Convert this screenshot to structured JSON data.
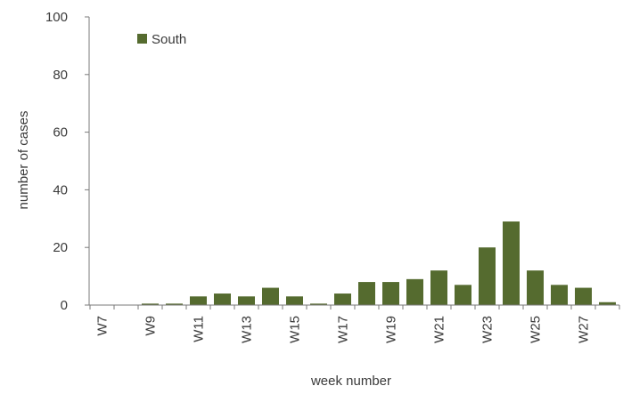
{
  "chart_data": {
    "type": "bar",
    "title": "",
    "xlabel": "week number",
    "ylabel": "number of cases",
    "ylim": [
      0,
      100
    ],
    "yticks": [
      0,
      20,
      40,
      60,
      80,
      100
    ],
    "grid": false,
    "legend_position": "top-left",
    "categories": [
      "W7",
      "W8",
      "W9",
      "W10",
      "W11",
      "W12",
      "W13",
      "W14",
      "W15",
      "W16",
      "W17",
      "W18",
      "W19",
      "W20",
      "W21",
      "W22",
      "W23",
      "W24",
      "W25",
      "W26",
      "W27",
      "W28"
    ],
    "tick_labels": [
      "W7",
      "W9",
      "W11",
      "W13",
      "W15",
      "W17",
      "W19",
      "W21",
      "W23",
      "W25",
      "W27"
    ],
    "series": [
      {
        "name": "South",
        "color": "#556b2f",
        "values": [
          0,
          0,
          0.5,
          0.5,
          3,
          4,
          3,
          6,
          3,
          0.5,
          4,
          8,
          8,
          9,
          12,
          7,
          20,
          29,
          12,
          7,
          6,
          1
        ]
      }
    ]
  }
}
